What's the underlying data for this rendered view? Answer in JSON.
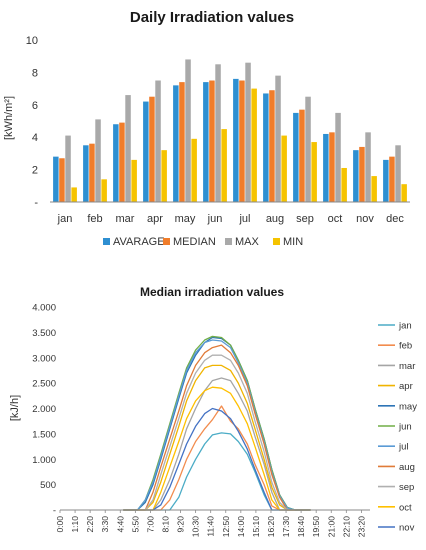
{
  "chart_data": [
    {
      "type": "bar",
      "title": "Daily Irradiation values",
      "ylabel": "[kWh/m²]",
      "ylim": [
        0,
        10
      ],
      "yticks": [
        "-",
        "2",
        "4",
        "6",
        "8",
        "10"
      ],
      "categories": [
        "jan",
        "feb",
        "mar",
        "apr",
        "may",
        "jun",
        "jul",
        "aug",
        "sep",
        "oct",
        "nov",
        "dec"
      ],
      "series": [
        {
          "name": "AVARAGE",
          "color": "#2e8fd1",
          "values": [
            2.8,
            3.5,
            4.8,
            6.2,
            7.2,
            7.4,
            7.6,
            6.7,
            5.5,
            4.2,
            3.2,
            2.6
          ]
        },
        {
          "name": "MEDIAN",
          "color": "#f07d2b",
          "values": [
            2.7,
            3.6,
            4.9,
            6.5,
            7.4,
            7.5,
            7.5,
            6.9,
            5.7,
            4.3,
            3.4,
            2.8
          ]
        },
        {
          "name": "MAX",
          "color": "#a9a9a9",
          "values": [
            4.1,
            5.1,
            6.6,
            7.5,
            8.8,
            8.5,
            8.6,
            7.8,
            6.5,
            5.5,
            4.3,
            3.5
          ]
        },
        {
          "name": "MIN",
          "color": "#f5c300",
          "values": [
            0.9,
            1.4,
            2.6,
            3.2,
            3.9,
            4.5,
            7.0,
            4.1,
            3.7,
            2.1,
            1.6,
            1.1
          ]
        }
      ],
      "legend_position": "bottom",
      "grid": false
    },
    {
      "type": "line",
      "title": "Median irradiation values",
      "ylabel": "[kJ/h]",
      "ylim": [
        0,
        4000
      ],
      "yticks": [
        "-",
        "500",
        "1.000",
        "1.500",
        "2.000",
        "2.500",
        "3.000",
        "3.500",
        "4.000"
      ],
      "xticks": [
        "0:00",
        "1:10",
        "2:20",
        "3:30",
        "4:40",
        "5:50",
        "7:00",
        "8:10",
        "9:20",
        "10:30",
        "11:40",
        "12:50",
        "14:00",
        "15:10",
        "16:20",
        "17:30",
        "18:40",
        "19:50",
        "21:00",
        "22:10",
        "23:20"
      ],
      "x": [
        4.9,
        5.4,
        6.0,
        6.6,
        7.2,
        7.8,
        8.5,
        9.2,
        9.8,
        10.5,
        11.2,
        11.8,
        12.5,
        13.2,
        13.8,
        14.5,
        15.1,
        15.8,
        16.4,
        17.0,
        17.6,
        18.2,
        18.8,
        19.4
      ],
      "series": [
        {
          "name": "jan",
          "color": "#4bacc6",
          "values": [
            0,
            0,
            0,
            0,
            0,
            0,
            0,
            250,
            650,
            1000,
            1300,
            1480,
            1520,
            1500,
            1350,
            1100,
            750,
            300,
            0,
            0,
            0,
            0,
            0,
            0
          ]
        },
        {
          "name": "feb",
          "color": "#f28c4e",
          "values": [
            0,
            0,
            0,
            0,
            0,
            0,
            200,
            600,
            1000,
            1350,
            1600,
            1780,
            2050,
            1750,
            1600,
            1300,
            900,
            500,
            80,
            0,
            0,
            0,
            0,
            0
          ]
        },
        {
          "name": "mar",
          "color": "#a5a5a5",
          "values": [
            0,
            0,
            0,
            0,
            0,
            200,
            600,
            1100,
            1600,
            2000,
            2350,
            2550,
            2600,
            2550,
            2300,
            1950,
            1450,
            900,
            350,
            0,
            0,
            0,
            0,
            0
          ]
        },
        {
          "name": "apr",
          "color": "#f0b400",
          "values": [
            0,
            0,
            0,
            0,
            150,
            550,
            1100,
            1650,
            2150,
            2550,
            2800,
            2850,
            2850,
            2750,
            2500,
            2100,
            1600,
            1000,
            450,
            100,
            0,
            0,
            0,
            0
          ]
        },
        {
          "name": "may",
          "color": "#2e75b6",
          "values": [
            0,
            0,
            0,
            150,
            500,
            1000,
            1600,
            2200,
            2700,
            3050,
            3300,
            3400,
            3380,
            3250,
            2950,
            2550,
            2000,
            1400,
            800,
            300,
            50,
            0,
            0,
            0
          ]
        },
        {
          "name": "jun",
          "color": "#70ad47",
          "values": [
            0,
            0,
            0,
            200,
            600,
            1100,
            1700,
            2300,
            2800,
            3150,
            3350,
            3420,
            3400,
            3250,
            2950,
            2550,
            2000,
            1400,
            800,
            300,
            50,
            0,
            0,
            0
          ]
        },
        {
          "name": "jul",
          "color": "#5b9bd5",
          "values": [
            0,
            0,
            0,
            200,
            550,
            1050,
            1650,
            2250,
            2750,
            3100,
            3300,
            3350,
            3330,
            3200,
            2900,
            2500,
            1950,
            1350,
            750,
            280,
            40,
            0,
            0,
            0
          ]
        },
        {
          "name": "aug",
          "color": "#e07b39",
          "values": [
            0,
            0,
            0,
            0,
            350,
            850,
            1400,
            1950,
            2450,
            2850,
            3100,
            3200,
            3250,
            3100,
            2850,
            2450,
            1900,
            1300,
            700,
            250,
            0,
            0,
            0,
            0
          ]
        },
        {
          "name": "sep",
          "color": "#b0b0b0",
          "values": [
            0,
            0,
            0,
            0,
            200,
            700,
            1250,
            1800,
            2300,
            2700,
            2950,
            3050,
            3050,
            2950,
            2700,
            2300,
            1750,
            1150,
            550,
            150,
            0,
            0,
            0,
            0
          ]
        },
        {
          "name": "oct",
          "color": "#ffc000",
          "values": [
            0,
            0,
            0,
            0,
            0,
            350,
            850,
            1350,
            1800,
            2150,
            2350,
            2420,
            2400,
            2300,
            2050,
            1700,
            1250,
            700,
            200,
            0,
            0,
            0,
            0,
            0
          ]
        },
        {
          "name": "nov",
          "color": "#4472c4",
          "values": [
            0,
            0,
            0,
            0,
            0,
            100,
            450,
            900,
            1300,
            1650,
            1900,
            2000,
            1950,
            1800,
            1550,
            1200,
            800,
            350,
            0,
            0,
            0,
            0,
            0,
            0
          ]
        }
      ],
      "legend_position": "right",
      "grid": false
    }
  ]
}
